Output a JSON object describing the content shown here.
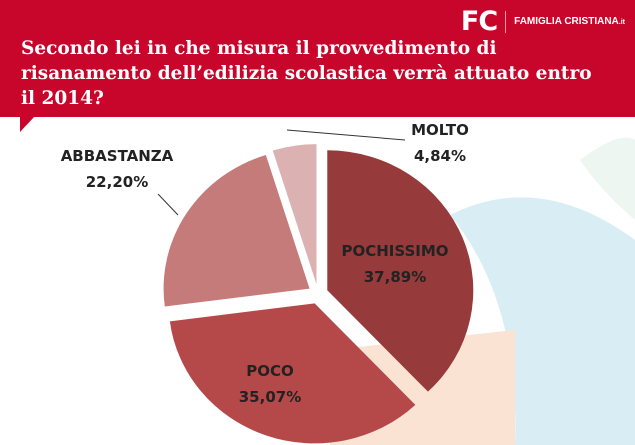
{
  "header": {
    "logo_mark": "FC",
    "logo_name": "FAMIGLIA CRISTIANA",
    "logo_suffix": ".it",
    "title": "Secondo lei in che misura il provvedimento di risanamento dell’edilizia scolastica verrà attuato entro il 2014?"
  },
  "chart_data": {
    "type": "pie",
    "title": "Secondo lei in che misura il provvedimento di risanamento dell’edilizia scolastica verrà attuato entro il 2014?",
    "slices": [
      {
        "label": "POCHISSIMO",
        "value": 37.89,
        "display": "37,89%",
        "color": "#963a3b"
      },
      {
        "label": "POCO",
        "value": 35.07,
        "display": "35,07%",
        "color": "#b5494a"
      },
      {
        "label": "ABBASTANZA",
        "value": 22.2,
        "display": "22,20%",
        "color": "#c67b7b"
      },
      {
        "label": "MOLTO",
        "value": 4.84,
        "display": "4,84%",
        "color": "#dcb1b1"
      }
    ]
  }
}
